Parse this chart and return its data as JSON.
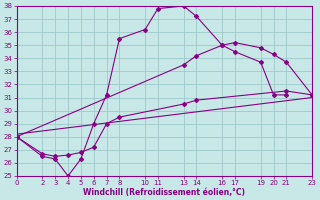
{
  "xlabel": "Windchill (Refroidissement éolien,°C)",
  "bg_color": "#c8e8e8",
  "grid_color": "#9ec8c8",
  "line_color": "#880088",
  "xlim": [
    0,
    23
  ],
  "ylim": [
    25,
    38
  ],
  "xticks": [
    0,
    2,
    3,
    4,
    5,
    6,
    7,
    8,
    10,
    11,
    13,
    14,
    16,
    17,
    19,
    20,
    21,
    23
  ],
  "yticks": [
    25,
    26,
    27,
    28,
    29,
    30,
    31,
    32,
    33,
    34,
    35,
    36,
    37,
    38
  ],
  "curve1_x": [
    0,
    2,
    3,
    4,
    5,
    6,
    7,
    8,
    10,
    11,
    13,
    14,
    16,
    17,
    19,
    20,
    21
  ],
  "curve1_y": [
    28.0,
    26.5,
    26.3,
    25.0,
    26.3,
    29.0,
    31.2,
    35.5,
    36.2,
    37.8,
    38.0,
    37.2,
    35.0,
    34.5,
    33.7,
    31.2,
    31.2
  ],
  "curve2_x": [
    0,
    13,
    14,
    16,
    17,
    19,
    20,
    21,
    23
  ],
  "curve2_y": [
    28.0,
    33.5,
    34.2,
    35.0,
    35.2,
    34.8,
    34.3,
    33.7,
    31.2
  ],
  "curve3_x": [
    0,
    23
  ],
  "curve3_y": [
    28.2,
    31.0
  ],
  "curve4_x": [
    0,
    2,
    3,
    4,
    5,
    6,
    7,
    8,
    13,
    14,
    21,
    23
  ],
  "curve4_y": [
    28.0,
    26.7,
    26.5,
    26.6,
    26.8,
    27.2,
    29.0,
    29.5,
    30.5,
    30.8,
    31.5,
    31.2
  ]
}
